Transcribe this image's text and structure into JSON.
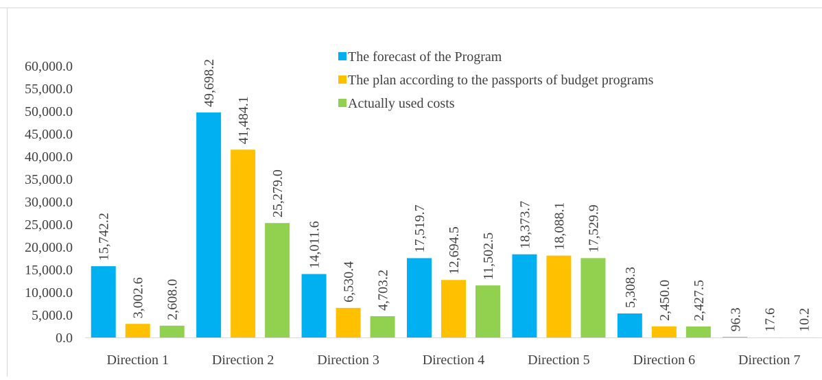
{
  "chart_data": {
    "type": "bar",
    "title": "",
    "xlabel": "",
    "ylabel": "",
    "ylim": [
      0,
      60000
    ],
    "ytick_step": 5000,
    "yticks": [
      "0.0",
      "5,000.0",
      "10,000.0",
      "15,000.0",
      "20,000.0",
      "25,000.0",
      "30,000.0",
      "35,000.0",
      "40,000.0",
      "45,000.0",
      "50,000.0",
      "55,000.0",
      "60,000.0"
    ],
    "grid": false,
    "legend_position": "top-center",
    "categories": [
      "Direction 1",
      "Direction 2",
      "Direction 3",
      "Direction 4",
      "Direction 5",
      "Direction 6",
      "Direction 7"
    ],
    "series": [
      {
        "name": "The forecast of the Program",
        "color": "#00b0f0",
        "values": [
          15742.2,
          49698.2,
          14011.6,
          17519.7,
          18373.7,
          5308.3,
          96.3
        ],
        "labels": [
          "15,742.2",
          "49,698.2",
          "14,011.6",
          "17,519.7",
          "18,373.7",
          "5,308.3",
          "96.3"
        ]
      },
      {
        "name": "The plan according to the passports of budget programs",
        "color": "#ffc000",
        "values": [
          3002.6,
          41484.1,
          6530.4,
          12694.5,
          18088.1,
          2450.0,
          17.6
        ],
        "labels": [
          "3,002.6",
          "41,484.1",
          "6,530.4",
          "12,694.5",
          "18,088.1",
          "2,450.0",
          "17.6"
        ]
      },
      {
        "name": "Actually used costs",
        "color": "#92d050",
        "values": [
          2608.0,
          25279.0,
          4703.2,
          11502.5,
          17529.9,
          2427.5,
          10.2
        ],
        "labels": [
          "2,608.0",
          "25,279.0",
          "4,703.2",
          "11,502.5",
          "17,529.9",
          "2,427.5",
          "10.2"
        ]
      }
    ]
  }
}
